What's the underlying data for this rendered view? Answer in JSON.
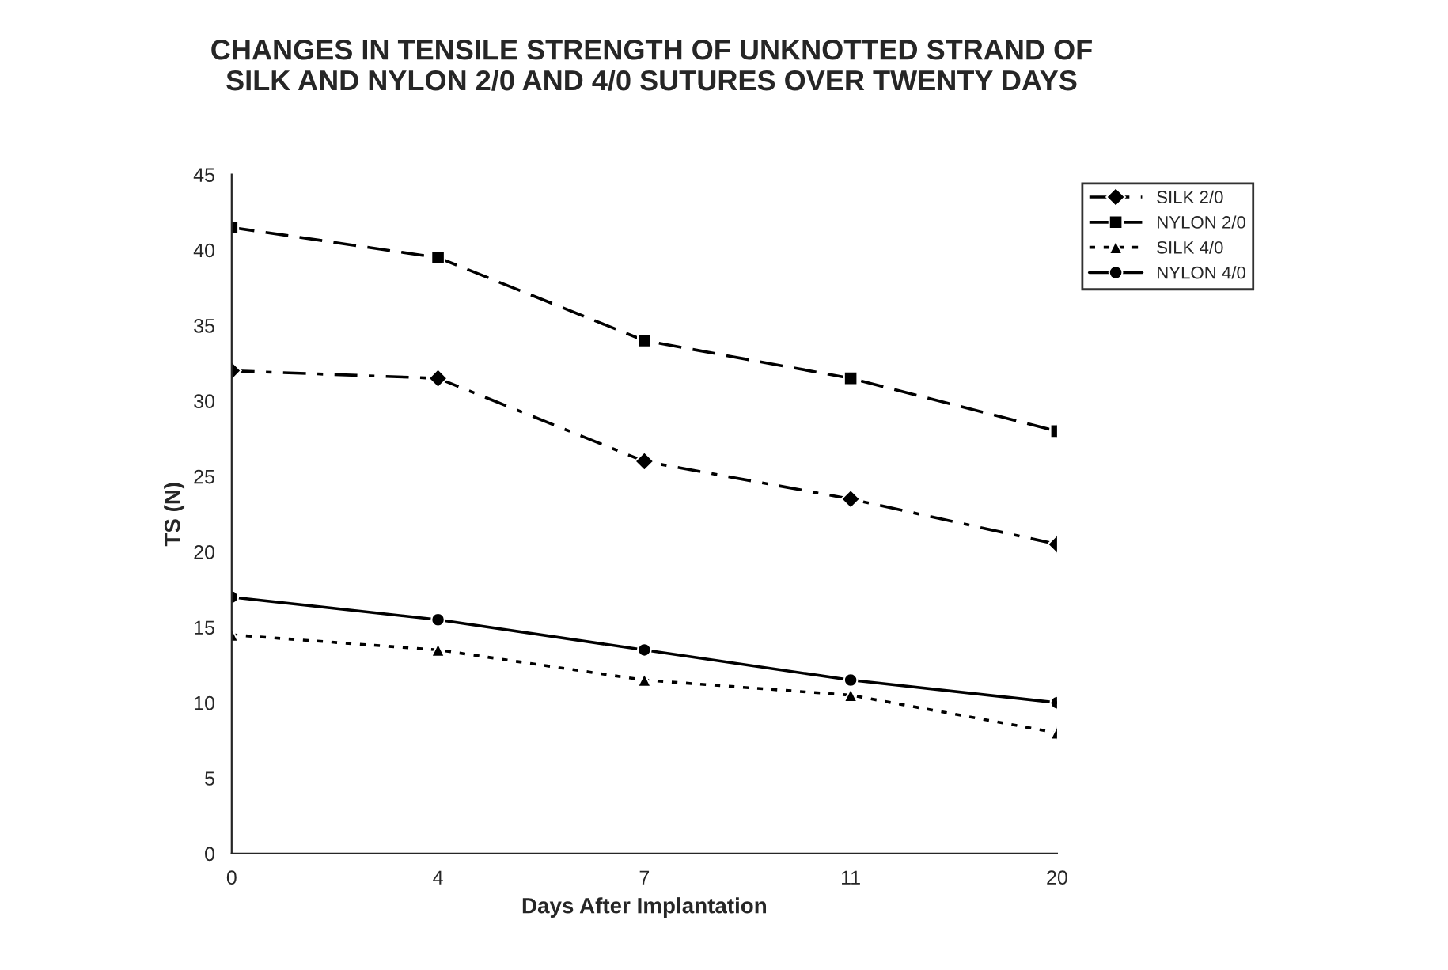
{
  "chart_data": {
    "type": "line",
    "title": "CHANGES IN TENSILE STRENGTH OF UNKNOTTED STRAND OF\nSILK AND NYLON 2/0 AND 4/0 SUTURES OVER TWENTY DAYS",
    "xlabel": "Days After Implantation",
    "ylabel": "TS (N)",
    "categories": [
      "0",
      "4",
      "7",
      "11",
      "20"
    ],
    "series": [
      {
        "name": "SILK 2/0",
        "color": "#000000",
        "marker": "diamond",
        "line_style": "dashdot",
        "values": [
          32,
          31.5,
          26,
          23.5,
          20.5
        ]
      },
      {
        "name": "NYLON 2/0",
        "color": "#000000",
        "marker": "square",
        "line_style": "dashed",
        "values": [
          41.5,
          39.5,
          34,
          31.5,
          28
        ]
      },
      {
        "name": "SILK 4/0",
        "color": "#000000",
        "marker": "triangle",
        "line_style": "dotted",
        "values": [
          14.5,
          13.5,
          11.5,
          10.5,
          8
        ]
      },
      {
        "name": "NYLON 4/0",
        "color": "#000000",
        "marker": "circle",
        "line_style": "solid",
        "values": [
          17,
          15.5,
          13.5,
          11.5,
          10
        ]
      }
    ],
    "ylim": [
      0,
      45
    ],
    "yticks": [
      0,
      5,
      10,
      15,
      20,
      25,
      30,
      35,
      40,
      45
    ],
    "grid": false,
    "legend": "top right"
  }
}
